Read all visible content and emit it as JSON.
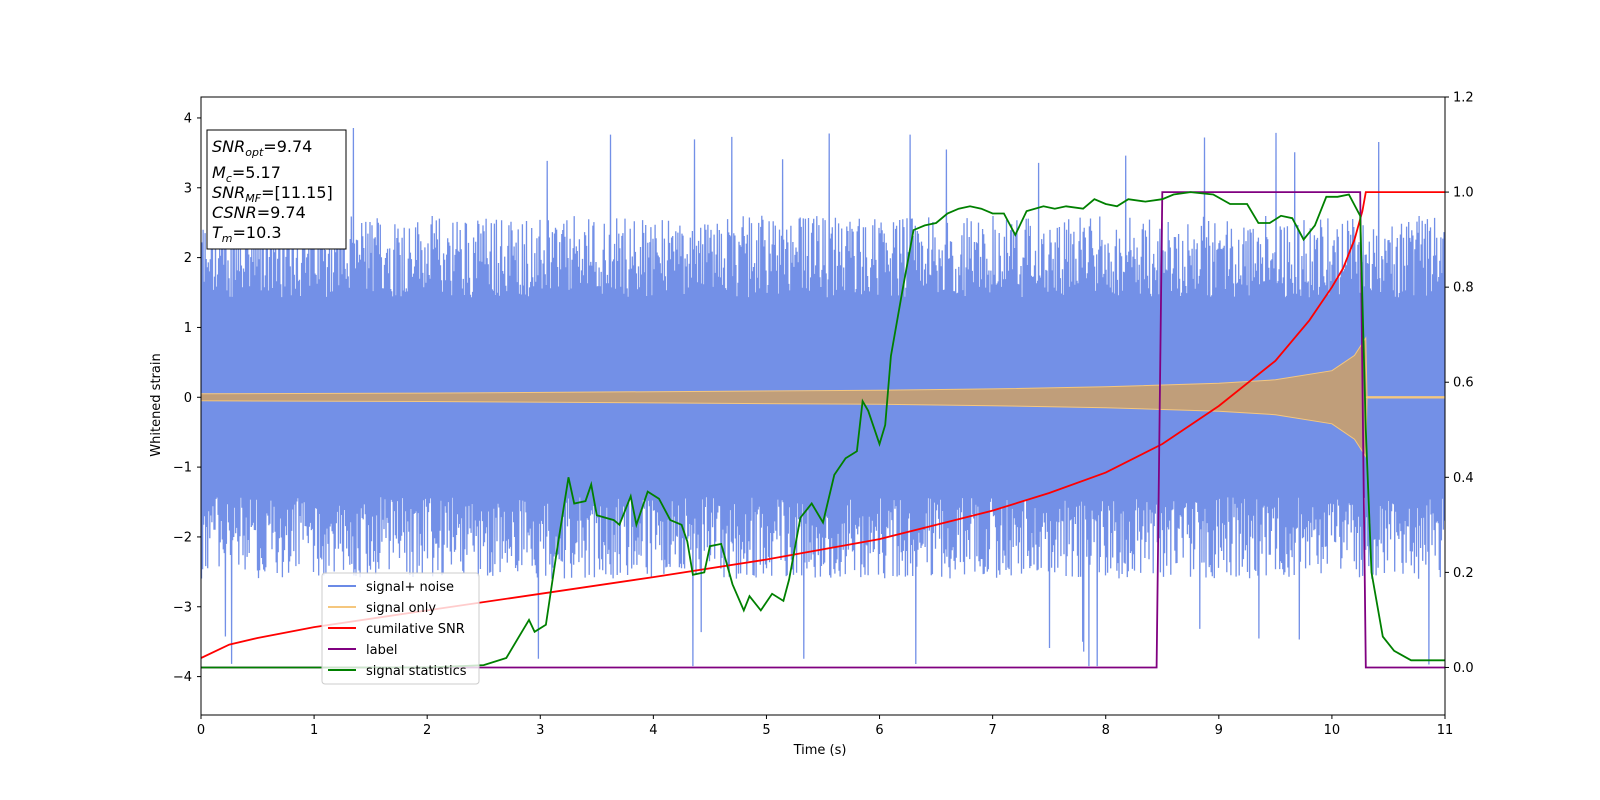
{
  "chart_data": {
    "type": "line",
    "title": "",
    "xlabel": "Time (s)",
    "ylabel": "Whitened strain",
    "y2label": "",
    "xlim": [
      0,
      11
    ],
    "ylim": [
      -4.55,
      4.3
    ],
    "y2lim": [
      -0.1,
      1.2
    ],
    "xticks": [
      0,
      1,
      2,
      3,
      4,
      5,
      6,
      7,
      8,
      9,
      10,
      11
    ],
    "yticks": [
      -4,
      -3,
      -2,
      -1,
      0,
      1,
      2,
      3,
      4
    ],
    "y2ticks": [
      0.0,
      0.2,
      0.4,
      0.6,
      0.8,
      1.0,
      1.2
    ],
    "xtick_labels": [
      "0",
      "1",
      "2",
      "3",
      "4",
      "5",
      "6",
      "7",
      "8",
      "9",
      "10",
      "11"
    ],
    "ytick_labels": [
      "−4",
      "−3",
      "−2",
      "−1",
      "0",
      "1",
      "2",
      "3",
      "4"
    ],
    "y2tick_labels": [
      "0.0",
      "0.2",
      "0.4",
      "0.6",
      "0.8",
      "1.0",
      "1.2"
    ],
    "grid": false,
    "legend_position": "lower-left",
    "info_box": {
      "snr_opt": {
        "symbol": "SNR",
        "sub": "opt",
        "value": "=9.74"
      },
      "mc": {
        "symbol": "M",
        "sub": "c",
        "value": "=5.17"
      },
      "snr_mf": {
        "symbol": "SNR",
        "sub": "MF",
        "value": "=[11.15]"
      },
      "csnr": {
        "symbol": "CSNR",
        "sub": "",
        "value": "=9.74"
      },
      "tm": {
        "symbol": "T",
        "sub": "m",
        "value": "=10.3"
      }
    },
    "series": [
      {
        "name": "signal+ noise",
        "axis": "left",
        "color": "#6b8ae6",
        "kind": "noisy-strain",
        "x_range": [
          0,
          11
        ],
        "noise_band": [
          -2.6,
          2.6
        ],
        "max_peak": 3.9,
        "min_peak": -3.85
      },
      {
        "name": "signal only",
        "axis": "left",
        "color": "#f5c77e",
        "kind": "chirp-envelope",
        "merger_time": 10.3,
        "points": [
          [
            0,
            0.05
          ],
          [
            2,
            0.06
          ],
          [
            4,
            0.08
          ],
          [
            6,
            0.1
          ],
          [
            7,
            0.12
          ],
          [
            8,
            0.15
          ],
          [
            9,
            0.2
          ],
          [
            9.5,
            0.25
          ],
          [
            10,
            0.38
          ],
          [
            10.2,
            0.6
          ],
          [
            10.3,
            0.85
          ],
          [
            10.31,
            0.01
          ],
          [
            11,
            0.01
          ]
        ]
      },
      {
        "name": "cumilative SNR",
        "axis": "right",
        "color": "#ff0000",
        "points": [
          [
            0,
            0.02
          ],
          [
            0.25,
            0.048
          ],
          [
            0.5,
            0.062
          ],
          [
            1,
            0.085
          ],
          [
            2,
            0.12
          ],
          [
            3,
            0.155
          ],
          [
            4,
            0.19
          ],
          [
            5,
            0.227
          ],
          [
            6,
            0.27
          ],
          [
            7,
            0.33
          ],
          [
            7.5,
            0.367
          ],
          [
            8,
            0.41
          ],
          [
            8.5,
            0.47
          ],
          [
            9,
            0.55
          ],
          [
            9.5,
            0.645
          ],
          [
            9.8,
            0.73
          ],
          [
            10,
            0.8
          ],
          [
            10.1,
            0.84
          ],
          [
            10.2,
            0.9
          ],
          [
            10.27,
            0.96
          ],
          [
            10.3,
            1.0
          ],
          [
            11,
            1.0
          ]
        ]
      },
      {
        "name": "label",
        "axis": "right",
        "color": "#800080",
        "points": [
          [
            0,
            0.0
          ],
          [
            8.45,
            0.0
          ],
          [
            8.5,
            1.0
          ],
          [
            10.25,
            1.0
          ],
          [
            10.3,
            0.0
          ],
          [
            11,
            0.0
          ]
        ]
      },
      {
        "name": "signal statistics",
        "axis": "right",
        "color": "#008000",
        "points": [
          [
            0,
            0.0
          ],
          [
            2.0,
            0.0
          ],
          [
            2.5,
            0.005
          ],
          [
            2.7,
            0.02
          ],
          [
            2.85,
            0.08
          ],
          [
            2.9,
            0.1
          ],
          [
            2.95,
            0.075
          ],
          [
            3.05,
            0.09
          ],
          [
            3.15,
            0.25
          ],
          [
            3.25,
            0.4
          ],
          [
            3.3,
            0.345
          ],
          [
            3.4,
            0.35
          ],
          [
            3.45,
            0.385
          ],
          [
            3.5,
            0.32
          ],
          [
            3.65,
            0.31
          ],
          [
            3.7,
            0.3
          ],
          [
            3.8,
            0.36
          ],
          [
            3.85,
            0.3
          ],
          [
            3.95,
            0.37
          ],
          [
            4.05,
            0.355
          ],
          [
            4.15,
            0.31
          ],
          [
            4.25,
            0.3
          ],
          [
            4.3,
            0.265
          ],
          [
            4.35,
            0.195
          ],
          [
            4.45,
            0.2
          ],
          [
            4.5,
            0.255
          ],
          [
            4.6,
            0.26
          ],
          [
            4.7,
            0.175
          ],
          [
            4.8,
            0.12
          ],
          [
            4.85,
            0.15
          ],
          [
            4.95,
            0.12
          ],
          [
            5.05,
            0.155
          ],
          [
            5.15,
            0.14
          ],
          [
            5.2,
            0.185
          ],
          [
            5.3,
            0.315
          ],
          [
            5.4,
            0.345
          ],
          [
            5.5,
            0.305
          ],
          [
            5.6,
            0.405
          ],
          [
            5.7,
            0.44
          ],
          [
            5.8,
            0.455
          ],
          [
            5.85,
            0.56
          ],
          [
            5.9,
            0.54
          ],
          [
            6.0,
            0.47
          ],
          [
            6.05,
            0.51
          ],
          [
            6.1,
            0.655
          ],
          [
            6.2,
            0.79
          ],
          [
            6.3,
            0.92
          ],
          [
            6.4,
            0.93
          ],
          [
            6.5,
            0.935
          ],
          [
            6.6,
            0.955
          ],
          [
            6.7,
            0.965
          ],
          [
            6.8,
            0.97
          ],
          [
            6.9,
            0.965
          ],
          [
            7.0,
            0.955
          ],
          [
            7.1,
            0.955
          ],
          [
            7.2,
            0.91
          ],
          [
            7.3,
            0.96
          ],
          [
            7.45,
            0.97
          ],
          [
            7.55,
            0.965
          ],
          [
            7.65,
            0.97
          ],
          [
            7.8,
            0.965
          ],
          [
            7.9,
            0.985
          ],
          [
            8.0,
            0.975
          ],
          [
            8.1,
            0.97
          ],
          [
            8.2,
            0.985
          ],
          [
            8.35,
            0.98
          ],
          [
            8.5,
            0.985
          ],
          [
            8.6,
            0.995
          ],
          [
            8.75,
            1.0
          ],
          [
            8.95,
            0.995
          ],
          [
            9.1,
            0.975
          ],
          [
            9.25,
            0.975
          ],
          [
            9.35,
            0.935
          ],
          [
            9.45,
            0.935
          ],
          [
            9.55,
            0.95
          ],
          [
            9.65,
            0.945
          ],
          [
            9.75,
            0.9
          ],
          [
            9.85,
            0.93
          ],
          [
            9.95,
            0.99
          ],
          [
            10.05,
            0.99
          ],
          [
            10.15,
            0.995
          ],
          [
            10.25,
            0.95
          ],
          [
            10.3,
            0.5
          ],
          [
            10.35,
            0.2
          ],
          [
            10.45,
            0.065
          ],
          [
            10.55,
            0.035
          ],
          [
            10.7,
            0.015
          ],
          [
            10.85,
            0.015
          ],
          [
            11.0,
            0.015
          ]
        ]
      }
    ]
  }
}
